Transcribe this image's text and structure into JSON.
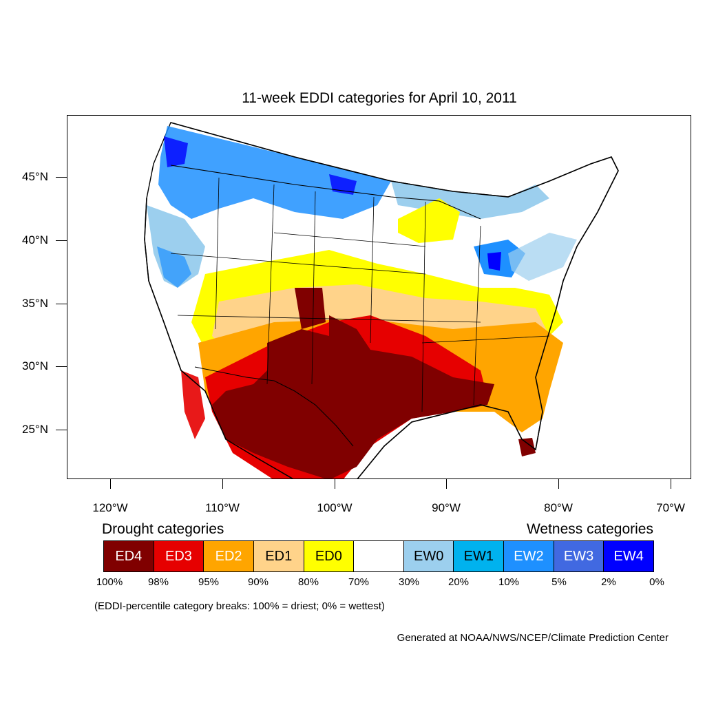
{
  "title": "11-week EDDI categories for April 10, 2011",
  "map": {
    "latitude_labels": [
      "45°N",
      "40°N",
      "35°N",
      "30°N",
      "25°N"
    ],
    "longitude_labels": [
      "120°W",
      "110°W",
      "100°W",
      "90°W",
      "80°W",
      "70°W"
    ],
    "projection": "lambert-conformal",
    "region": "Contiguous United States",
    "highlights": [
      {
        "category": "ED4",
        "area": "Southern Plains, Texas, New Mexico, Gulf Coast"
      },
      {
        "category": "ED3",
        "area": "Southwest, northern Mexico"
      },
      {
        "category": "ED2",
        "area": "Southeast"
      },
      {
        "category": "ED0",
        "area": "Central Plains, Midwest"
      },
      {
        "category": "EW1",
        "area": "Northern Rockies, Pacific Northwest"
      },
      {
        "category": "EW4",
        "area": "Northwest Washington, Lower Michigan, Montana"
      }
    ]
  },
  "legend": {
    "drought_heading": "Drought categories",
    "wetness_heading": "Wetness categories",
    "boxes": [
      {
        "label": "ED4",
        "color": "#800000",
        "text_color": "#ffffff"
      },
      {
        "label": "ED3",
        "color": "#e60000",
        "text_color": "#ffffff"
      },
      {
        "label": "ED2",
        "color": "#ffa500",
        "text_color": "#ffffff"
      },
      {
        "label": "ED1",
        "color": "#ffd38a",
        "text_color": "#000000"
      },
      {
        "label": "ED0",
        "color": "#ffff00",
        "text_color": "#000000"
      },
      {
        "label": "",
        "color": "#ffffff",
        "text_color": "#000000"
      },
      {
        "label": "EW0",
        "color": "#9ccfee",
        "text_color": "#000000"
      },
      {
        "label": "EW1",
        "color": "#00b2ee",
        "text_color": "#000000"
      },
      {
        "label": "EW2",
        "color": "#1e90ff",
        "text_color": "#ffffff"
      },
      {
        "label": "EW3",
        "color": "#4169e1",
        "text_color": "#ffffff"
      },
      {
        "label": "EW4",
        "color": "#0000ff",
        "text_color": "#ffffff"
      }
    ],
    "breaks": [
      "100%",
      "98%",
      "95%",
      "90%",
      "80%",
      "70%",
      "30%",
      "20%",
      "10%",
      "5%",
      "2%",
      "0%"
    ]
  },
  "note": "(EDDI-percentile category breaks: 100% = driest; 0% = wettest)",
  "credit": "Generated at NOAA/NWS/NCEP/Climate Prediction Center"
}
